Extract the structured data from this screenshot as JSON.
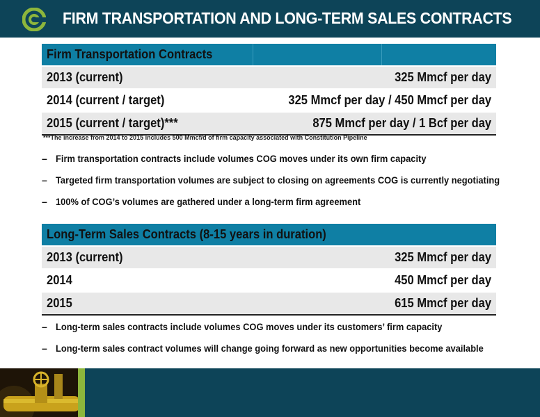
{
  "header": {
    "title": "FIRM TRANSPORTATION AND LONG-TERM SALES CONTRACTS",
    "background": "#0d4458",
    "logo_icon": "company-logo-icon"
  },
  "firm_transport": {
    "heading": "Firm Transportation Contracts",
    "rows": [
      {
        "label": "2013 (current)",
        "value": "325 Mmcf per day"
      },
      {
        "label": "2014 (current / target)",
        "value": "325 Mmcf per day / 450 Mmcf per day"
      },
      {
        "label": "2015 (current / target)***",
        "value": "875 Mmcf per day / 1 Bcf per day"
      }
    ],
    "footnote": "***The increase from 2014 to 2015 includes 500 Mmcf/d of firm capacity associated with Constitution Pipeline"
  },
  "bullets_1": [
    "Firm transportation contracts include volumes COG moves under its own firm capacity",
    "Targeted firm transportation volumes are subject to closing on agreements COG is currently negotiating",
    "100% of COG’s volumes are gathered under a long-term firm agreement"
  ],
  "sales_contracts": {
    "heading": "Long-Term Sales Contracts (8-15 years in duration)",
    "rows": [
      {
        "label": "2013 (current)",
        "value": "325 Mmcf per day"
      },
      {
        "label": "2014",
        "value": "450 Mmcf per day"
      },
      {
        "label": "2015",
        "value": "615 Mmcf per day"
      }
    ]
  },
  "bullets_2": [
    "Long-term sales contracts include volumes COG moves under its customers’ firm capacity",
    "Long-term sales contract volumes will change going forward as new opportunities become available"
  ],
  "bullet_dash": "–",
  "colors": {
    "table_header": "#0f7fa4",
    "row_shaded": "#e8e8e8",
    "accent_green": "#8db63c"
  }
}
